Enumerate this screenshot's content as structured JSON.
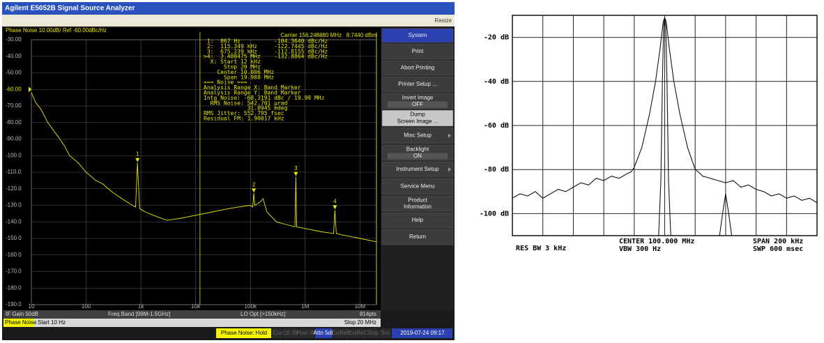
{
  "window": {
    "title": "Agilent E5052B Signal Source Analyzer",
    "resize": "Resize"
  },
  "phase_noise": {
    "type": "line",
    "header": "Phase Noise 10.00dB/ Ref -60.00dBc/Hz",
    "carrier": "Carrier 156.248880 MHz",
    "power": "8.7440 dBm",
    "xlim": [
      10,
      20000000
    ],
    "log_x": true,
    "ylim": [
      -190,
      -30
    ],
    "ref_level": -60,
    "xticks": [
      {
        "value": 10,
        "label": "10"
      },
      {
        "value": 100,
        "label": "100"
      },
      {
        "value": 1000,
        "label": "1k"
      },
      {
        "value": 10000,
        "label": "10k"
      },
      {
        "value": 100000,
        "label": "100k"
      },
      {
        "value": 1000000,
        "label": "1M"
      },
      {
        "value": 10000000,
        "label": "10M"
      }
    ],
    "yticks": [
      {
        "value": -30,
        "label": "-30.00"
      },
      {
        "value": -40,
        "label": "-40.00"
      },
      {
        "value": -50,
        "label": "-50.00"
      },
      {
        "value": -60,
        "label": "-60.00"
      },
      {
        "value": -70,
        "label": "-70.00"
      },
      {
        "value": -80,
        "label": "-80.00"
      },
      {
        "value": -90,
        "label": "-90.00"
      },
      {
        "value": -100,
        "label": "-100.0"
      },
      {
        "value": -110,
        "label": "-110.0"
      },
      {
        "value": -120,
        "label": "-120.0"
      },
      {
        "value": -130,
        "label": "-130.0"
      },
      {
        "value": -140,
        "label": "-140.0"
      },
      {
        "value": -150,
        "label": "-150.0"
      },
      {
        "value": -160,
        "label": "-160.0"
      },
      {
        "value": -170,
        "label": "-170.0"
      },
      {
        "value": -180,
        "label": "-180.0"
      },
      {
        "value": -190,
        "label": "-190.0"
      }
    ],
    "band_markers": [
      12000,
      20000000
    ],
    "series": [
      {
        "color": "#e8e800",
        "x": [
          10,
          12,
          15,
          20,
          30,
          40,
          50,
          70,
          100,
          150,
          200,
          300,
          500,
          700,
          800,
          867,
          950,
          1200,
          2000,
          3000,
          5000,
          10000,
          20000,
          40000,
          60000,
          100000,
          110000,
          115349,
          120000,
          150000,
          170000,
          200000,
          300000,
          500000,
          650000,
          675239,
          700000,
          1000000,
          2000000,
          3300000,
          3488475,
          3700000,
          5000000,
          10000000,
          20000000
        ],
        "values": [
          -62,
          -68,
          -72,
          -80,
          -88,
          -94,
          -100,
          -104,
          -110,
          -115,
          -117,
          -122,
          -127,
          -130,
          -131,
          -104.4,
          -132,
          -134,
          -137,
          -139,
          -138,
          -136,
          -134,
          -132,
          -131,
          -130,
          -131,
          -122.7,
          -130,
          -128,
          -126,
          -134,
          -140,
          -142,
          -143,
          -112.8,
          -143,
          -144,
          -146,
          -147,
          -132.9,
          -147,
          -148,
          -150,
          -152
        ]
      }
    ],
    "markers": [
      {
        "label": "1",
        "x": 867,
        "y": -104.364
      },
      {
        "label": "2",
        "x": 115349,
        "y": -122.7445
      },
      {
        "label": "3",
        "x": 675239,
        "y": -112.8155
      },
      {
        "label": "4",
        "x": 3488475,
        "y": -132.8864
      }
    ],
    "readout": [
      " 1:  867 Hz          -104.3640 dBc/Hz",
      " 2:  115.349 kHz     -122.7445 dBc/Hz",
      " 3:  675.239 kHz     -112.8155 dBc/Hz",
      ">4:  3.488475 MHz    -132.8864 dBc/Hz",
      "  X: Start 12 kHz",
      "      Stop 20 MHz",
      "    Center 10.006 MHz",
      "      Span 19.988 MHz",
      "=== Noise ===",
      "Analysis Range X: Band Marker",
      "Analysis Range Y: Band Marker",
      "Intg Noise: -68.3191 dBc / 19.99 MHz",
      "  RMS Noise: 542.701 µrad",
      "             31.0945 mdeg",
      "RMS Jitter: 552.795 fsec",
      "Residual FM: 1.90017 kHz"
    ]
  },
  "status": {
    "if_gain": "IF Gain 50dB",
    "freq_band": "Freq Band [99M-1.5GHz]",
    "lo_opt": "LO Opt [>150kHz]",
    "points": "814pts",
    "meas": "Phase Noise",
    "start": "Start 10 Hz",
    "stop": "Stop 20 MHz",
    "bar": [
      "Phase Noise: Hold",
      "Cor",
      "Ctl: 0V",
      "Pow: 0V",
      "Attn 5dB",
      "ExtRef1",
      "ExtRef2",
      "Stop",
      "Svc",
      "2019-07-24 09:17"
    ]
  },
  "softkeys": [
    {
      "label": "System"
    },
    {
      "label": "Print"
    },
    {
      "label": "Abort Printing"
    },
    {
      "label": "Printer Setup ..."
    },
    {
      "label": "Invert Image",
      "value": "OFF"
    },
    {
      "label": "Dump",
      "value": "Screen Image ..."
    },
    {
      "label": "Misc Setup"
    },
    {
      "label": "Backlight",
      "value": "ON"
    },
    {
      "label": "Instrument Setup"
    },
    {
      "label": "Service Menu"
    },
    {
      "label": "Product",
      "value": "Information"
    },
    {
      "label": "Help"
    },
    {
      "label": "Return"
    }
  ],
  "spectrum": {
    "type": "line",
    "xlim": [
      -100,
      100
    ],
    "ylim": [
      -110,
      -10
    ],
    "x_divisions": 10,
    "yticks": [
      {
        "value": -20,
        "label": "-20 dB"
      },
      {
        "value": -40,
        "label": "-40 dB"
      },
      {
        "value": -60,
        "label": "-60 dB"
      },
      {
        "value": -80,
        "label": "-80 dB"
      },
      {
        "value": -100,
        "label": "-100 dB"
      }
    ],
    "series": [
      {
        "color": "#111111",
        "x": [
          -100,
          -95,
          -90,
          -85,
          -80,
          -75,
          -70,
          -65,
          -60,
          -55,
          -50,
          -45,
          -40,
          -35,
          -30,
          -25,
          -22,
          -20,
          -15,
          -10,
          -6,
          -3,
          -1,
          0,
          1,
          3,
          6,
          10,
          15,
          20,
          22,
          25,
          30,
          35,
          40,
          45,
          50,
          55,
          60,
          65,
          70,
          75,
          80,
          85,
          90,
          95,
          100
        ],
        "values": [
          -93,
          -91,
          -92,
          -90,
          -93,
          -91,
          -89,
          -90,
          -88,
          -86,
          -87,
          -84,
          -85,
          -83,
          -84,
          -82,
          -81,
          -79,
          -70,
          -55,
          -40,
          -25,
          -13,
          -11,
          -13,
          -25,
          -40,
          -55,
          -70,
          -80,
          -81,
          -83,
          -84,
          -85,
          -86,
          -85,
          -88,
          -87,
          -89,
          -90,
          -92,
          -91,
          -93,
          -92,
          -94,
          -93,
          -95
        ]
      },
      {
        "color": "#111111",
        "x": [
          -4,
          -2.5,
          -1.5,
          -0.7,
          0,
          0.7,
          1.5,
          2.5,
          4,
          null,
          36,
          38,
          40,
          42,
          44
        ],
        "values": [
          -110,
          -85,
          -40,
          -15,
          -11,
          -15,
          -40,
          -85,
          -110,
          null,
          -110,
          -100,
          -91,
          -100,
          -110
        ]
      }
    ],
    "res_bw": "RES BW 3 kHz",
    "center": "CENTER 100.000 MHz",
    "vbw": "VBW 300  Hz",
    "span": "SPAN 200 kHz",
    "sweep": "SWP 600 msec"
  }
}
